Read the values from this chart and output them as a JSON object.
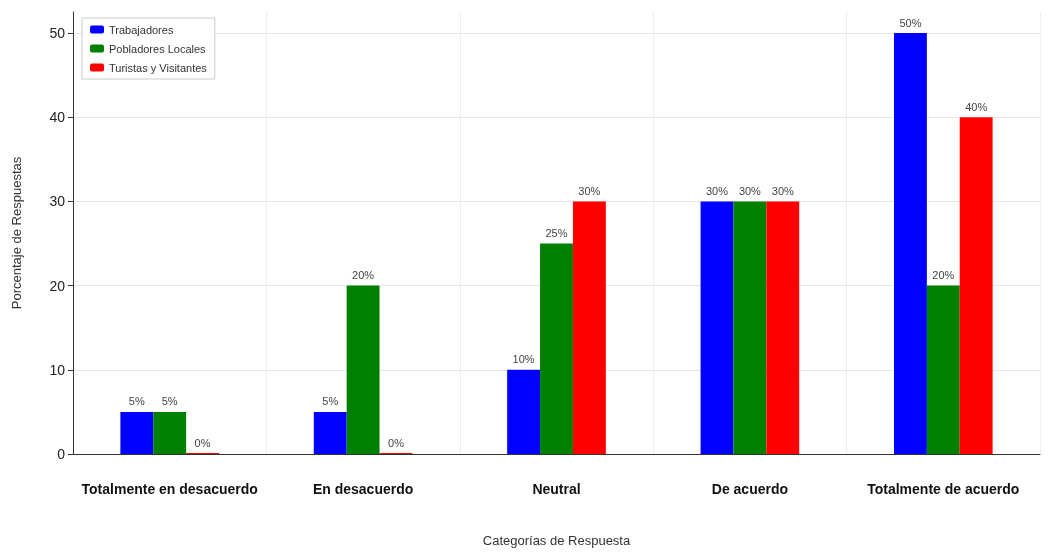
{
  "chart_data": {
    "type": "bar",
    "xlabel": "Categorías de Respuesta",
    "ylabel": "Porcentaje de Respuestas",
    "categories": [
      "Totalmente en desacuerdo",
      "En desacuerdo",
      "Neutral",
      "De acuerdo",
      "Totalmente de acuerdo"
    ],
    "series": [
      {
        "name": "Trabajadores",
        "color": "#0000ff",
        "values": [
          5,
          5,
          10,
          30,
          50
        ],
        "value_labels": [
          "5%",
          "5%",
          "10%",
          "30%",
          "50%"
        ]
      },
      {
        "name": "Pobladores Locales",
        "color": "#008000",
        "values": [
          5,
          20,
          25,
          30,
          20
        ],
        "value_labels": [
          "5%",
          "20%",
          "25%",
          "30%",
          "20%"
        ]
      },
      {
        "name": "Turistas y Visitantes",
        "color": "#ff0000",
        "values": [
          0,
          0,
          30,
          30,
          40
        ],
        "value_labels": [
          "0%",
          "0%",
          "30%",
          "30%",
          "40%"
        ]
      }
    ],
    "ylim": [
      0,
      52.5
    ],
    "yticks": [
      0,
      10,
      20,
      30,
      40,
      50
    ],
    "grid": true,
    "legend": "top left"
  }
}
